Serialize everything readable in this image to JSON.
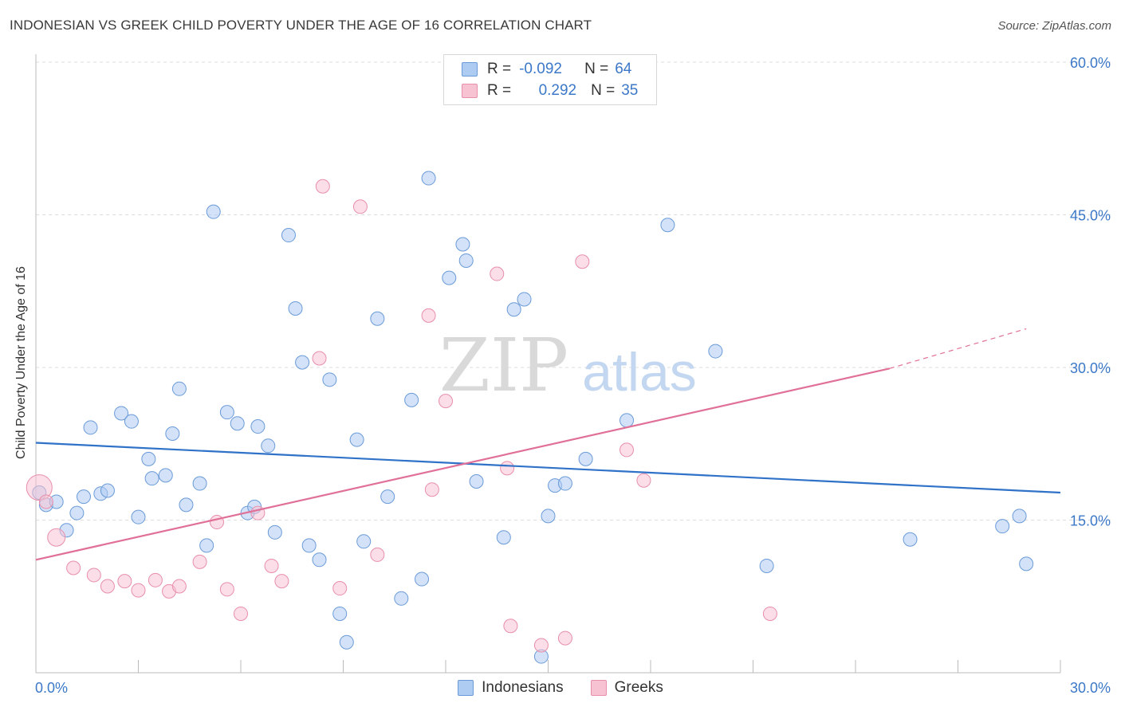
{
  "header": {
    "title": "INDONESIAN VS GREEK CHILD POVERTY UNDER THE AGE OF 16 CORRELATION CHART",
    "source": "Source: ZipAtlas.com"
  },
  "legend": {
    "rows": [
      {
        "r_label": "R =",
        "r_value": "-0.092",
        "n_label": "N =",
        "n_value": "64"
      },
      {
        "r_label": "R =",
        "r_value": "0.292",
        "n_label": "N =",
        "n_value": "35"
      }
    ]
  },
  "colors": {
    "indonesians_fill": "#aecbf2",
    "indonesians_stroke": "#6a9bd8",
    "indonesians_line": "#2f72c8",
    "greeks_fill": "#f7c3d3",
    "greeks_stroke": "#e88fab",
    "greeks_line": "#e07098",
    "value_text": "#3c78c8",
    "grid": "#dddddd"
  },
  "chart_data": {
    "type": "scatter",
    "title": "INDONESIAN VS GREEK CHILD POVERTY UNDER THE AGE OF 16 CORRELATION CHART",
    "xlabel": "",
    "ylabel": "Child Poverty Under the Age of 16",
    "xlim": [
      0,
      30
    ],
    "ylim": [
      0,
      60
    ],
    "x_tick_labels": [
      "0.0%",
      "30.0%"
    ],
    "y_tick_values": [
      15,
      30,
      45,
      60
    ],
    "y_tick_labels": [
      "15.0%",
      "30.0%",
      "45.0%",
      "60.0%"
    ],
    "watermark": {
      "zip": "ZIP",
      "atlas": "atlas"
    },
    "series": [
      {
        "name": "Indonesians",
        "r": -0.092,
        "n": 64,
        "trend": {
          "x0": 0,
          "y0": 22.6,
          "x1": 30,
          "y1": 17.7
        },
        "points": [
          [
            0.1,
            17.7
          ],
          [
            0.3,
            16.5
          ],
          [
            0.6,
            16.8
          ],
          [
            0.9,
            14.0
          ],
          [
            1.2,
            15.7
          ],
          [
            1.4,
            17.3
          ],
          [
            1.6,
            24.1
          ],
          [
            1.9,
            17.6
          ],
          [
            2.1,
            17.9
          ],
          [
            2.5,
            25.5
          ],
          [
            2.8,
            24.7
          ],
          [
            3.0,
            15.3
          ],
          [
            3.3,
            21.0
          ],
          [
            3.4,
            19.1
          ],
          [
            3.8,
            19.4
          ],
          [
            4.0,
            23.5
          ],
          [
            4.2,
            27.9
          ],
          [
            4.4,
            16.5
          ],
          [
            4.8,
            18.6
          ],
          [
            5.0,
            12.5
          ],
          [
            5.2,
            45.3
          ],
          [
            5.6,
            25.6
          ],
          [
            5.9,
            24.5
          ],
          [
            6.2,
            15.7
          ],
          [
            6.4,
            16.3
          ],
          [
            6.5,
            24.2
          ],
          [
            6.8,
            22.3
          ],
          [
            7.0,
            13.8
          ],
          [
            7.4,
            43.0
          ],
          [
            7.6,
            35.8
          ],
          [
            7.8,
            30.5
          ],
          [
            8.0,
            12.5
          ],
          [
            8.3,
            11.1
          ],
          [
            8.6,
            28.8
          ],
          [
            8.9,
            5.8
          ],
          [
            9.1,
            3.0
          ],
          [
            9.4,
            22.9
          ],
          [
            9.6,
            12.9
          ],
          [
            10.0,
            34.8
          ],
          [
            10.3,
            17.3
          ],
          [
            10.7,
            7.3
          ],
          [
            11.0,
            26.8
          ],
          [
            11.3,
            9.2
          ],
          [
            11.5,
            48.6
          ],
          [
            12.1,
            38.8
          ],
          [
            12.5,
            42.1
          ],
          [
            12.6,
            40.5
          ],
          [
            12.9,
            18.8
          ],
          [
            13.7,
            13.3
          ],
          [
            14.0,
            35.7
          ],
          [
            14.3,
            36.7
          ],
          [
            14.8,
            1.6
          ],
          [
            15.0,
            15.4
          ],
          [
            15.2,
            18.4
          ],
          [
            15.5,
            18.6
          ],
          [
            16.1,
            21.0
          ],
          [
            17.3,
            24.8
          ],
          [
            18.5,
            44.0
          ],
          [
            19.9,
            31.6
          ],
          [
            21.4,
            10.5
          ],
          [
            25.6,
            13.1
          ],
          [
            28.3,
            14.4
          ],
          [
            28.8,
            15.4
          ],
          [
            29.0,
            10.7
          ]
        ]
      },
      {
        "name": "Greeks",
        "r": 0.292,
        "n": 35,
        "trend": {
          "x0": 0,
          "y0": 11.1,
          "x1": 25.0,
          "y1": 29.9
        },
        "trend_dashed": {
          "x0": 25.0,
          "y0": 29.9,
          "x1": 29.0,
          "y1": 33.8
        },
        "points": [
          [
            0.1,
            18.2
          ],
          [
            0.3,
            16.8
          ],
          [
            0.6,
            13.3
          ],
          [
            1.1,
            10.3
          ],
          [
            1.7,
            9.6
          ],
          [
            2.1,
            8.5
          ],
          [
            2.6,
            9.0
          ],
          [
            3.0,
            8.1
          ],
          [
            3.5,
            9.1
          ],
          [
            3.9,
            8.0
          ],
          [
            4.2,
            8.5
          ],
          [
            4.8,
            10.9
          ],
          [
            5.3,
            14.8
          ],
          [
            5.6,
            8.2
          ],
          [
            6.0,
            5.8
          ],
          [
            6.5,
            15.7
          ],
          [
            6.9,
            10.5
          ],
          [
            7.2,
            9.0
          ],
          [
            8.3,
            30.9
          ],
          [
            8.4,
            47.8
          ],
          [
            8.9,
            8.3
          ],
          [
            9.5,
            45.8
          ],
          [
            10.0,
            11.6
          ],
          [
            11.5,
            35.1
          ],
          [
            11.6,
            18.0
          ],
          [
            12.0,
            26.7
          ],
          [
            13.5,
            39.2
          ],
          [
            13.8,
            20.1
          ],
          [
            13.9,
            4.6
          ],
          [
            14.8,
            2.7
          ],
          [
            15.5,
            3.4
          ],
          [
            16.0,
            40.4
          ],
          [
            17.3,
            21.9
          ],
          [
            17.8,
            18.9
          ],
          [
            21.5,
            5.8
          ]
        ]
      }
    ]
  },
  "bottom_legend": {
    "items": [
      "Indonesians",
      "Greeks"
    ]
  }
}
